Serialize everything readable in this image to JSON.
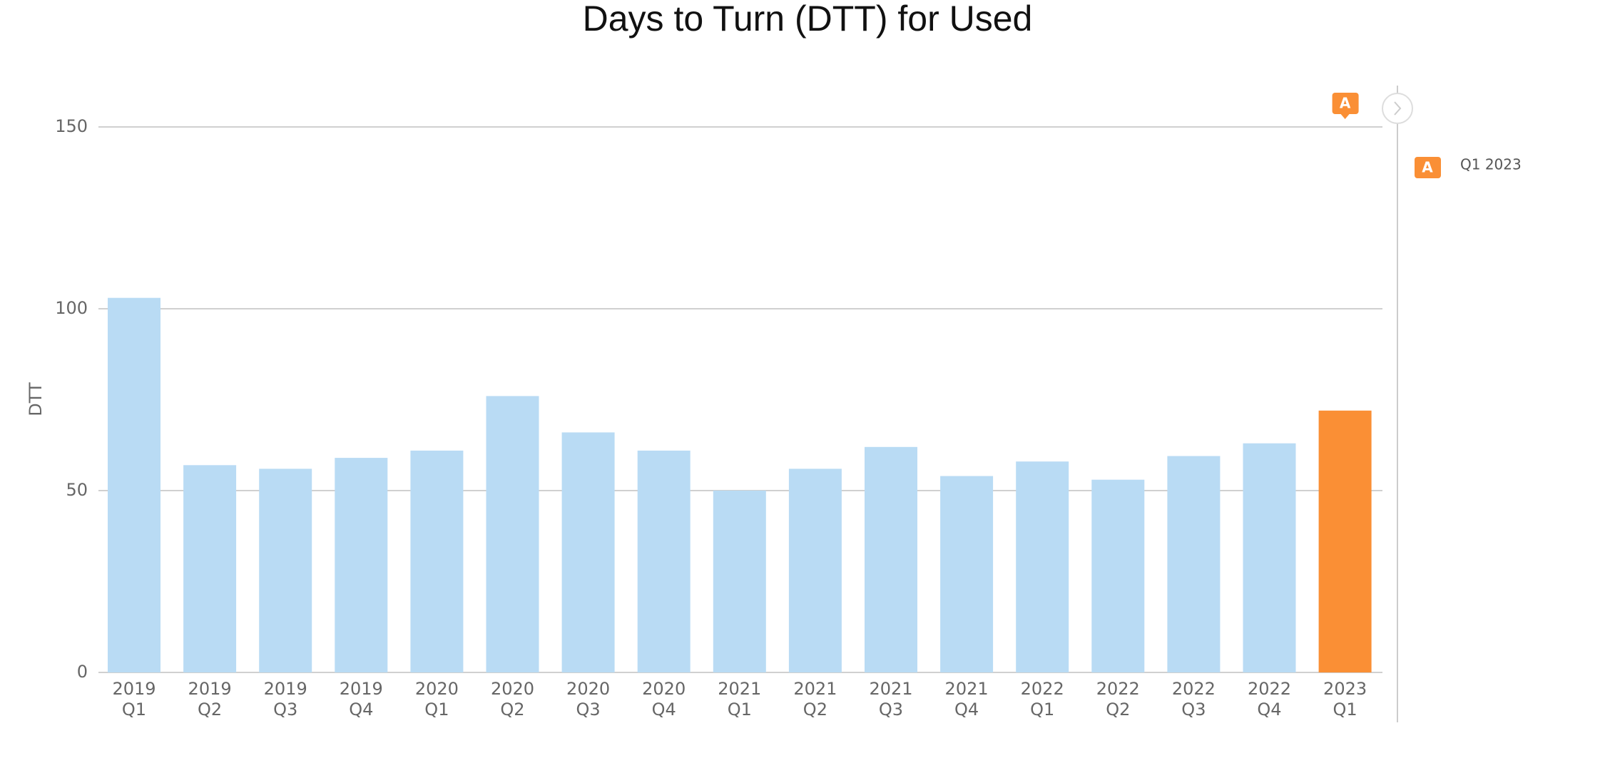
{
  "chart_data": {
    "type": "bar",
    "title": "Days to Turn (DTT) for Used",
    "y_label": "DTT",
    "categories": [
      "2019 Q1",
      "2019 Q2",
      "2019 Q3",
      "2019 Q4",
      "2020 Q1",
      "2020 Q2",
      "2020 Q3",
      "2020 Q4",
      "2021 Q1",
      "2021 Q2",
      "2021 Q3",
      "2021 Q4",
      "2022 Q1",
      "2022 Q2",
      "2022 Q3",
      "2022 Q4",
      "2023 Q1"
    ],
    "values": [
      103,
      57,
      56,
      59,
      61,
      76,
      66,
      61,
      50,
      56,
      62,
      54,
      58,
      53,
      59.5,
      63,
      72
    ],
    "colors": [
      "#b9dbf4",
      "#b9dbf4",
      "#b9dbf4",
      "#b9dbf4",
      "#b9dbf4",
      "#b9dbf4",
      "#b9dbf4",
      "#b9dbf4",
      "#b9dbf4",
      "#b9dbf4",
      "#b9dbf4",
      "#b9dbf4",
      "#b9dbf4",
      "#b9dbf4",
      "#b9dbf4",
      "#b9dbf4",
      "#fa8f35"
    ],
    "ylim": [
      0,
      150
    ],
    "yticks": [
      0,
      50,
      100,
      150
    ],
    "grid": true,
    "annotation": {
      "marker": "A",
      "label": "Q1 2023",
      "color": "#fa8f35"
    }
  }
}
